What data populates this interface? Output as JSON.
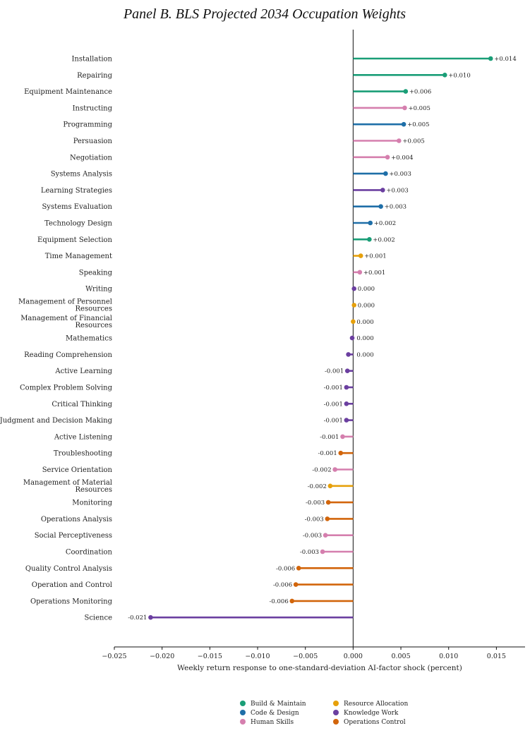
{
  "chart_data": {
    "type": "lollipop",
    "title": "Panel B. BLS Projected 2034 Occupation Weights",
    "xlabel": "Weekly return response to one-standard-deviation AI-factor shock (percent)",
    "xlim": [
      -0.025,
      0.018
    ],
    "xticks": [
      -0.025,
      -0.02,
      -0.015,
      -0.01,
      -0.005,
      0.0,
      0.005,
      0.01,
      0.015
    ],
    "xtick_labels": [
      "−0.025",
      "−0.020",
      "−0.015",
      "−0.010",
      "−0.005",
      "0.000",
      "0.005",
      "0.010",
      "0.015"
    ],
    "legend_position": "bottom-center",
    "groups": [
      {
        "name": "Build & Maintain",
        "color": "#1a9e77"
      },
      {
        "name": "Resource Allocation",
        "color": "#e6a00b"
      },
      {
        "name": "Code & Design",
        "color": "#1f6fa8"
      },
      {
        "name": "Knowledge Work",
        "color": "#6b3fa0"
      },
      {
        "name": "Human Skills",
        "color": "#d57fae"
      },
      {
        "name": "Operations Control",
        "color": "#d2650b"
      }
    ],
    "items": [
      {
        "label": "Installation",
        "value": 0.0144,
        "value_label": "+0.014",
        "group": "Build & Maintain"
      },
      {
        "label": "Repairing",
        "value": 0.0096,
        "value_label": "+0.010",
        "group": "Build & Maintain"
      },
      {
        "label": "Equipment Maintenance",
        "value": 0.0055,
        "value_label": "+0.006",
        "group": "Build & Maintain"
      },
      {
        "label": "Instructing",
        "value": 0.0054,
        "value_label": "+0.005",
        "group": "Human Skills"
      },
      {
        "label": "Programming",
        "value": 0.0053,
        "value_label": "+0.005",
        "group": "Code & Design"
      },
      {
        "label": "Persuasion",
        "value": 0.0048,
        "value_label": "+0.005",
        "group": "Human Skills"
      },
      {
        "label": "Negotiation",
        "value": 0.0036,
        "value_label": "+0.004",
        "group": "Human Skills"
      },
      {
        "label": "Systems Analysis",
        "value": 0.0034,
        "value_label": "+0.003",
        "group": "Code & Design"
      },
      {
        "label": "Learning Strategies",
        "value": 0.0031,
        "value_label": "+0.003",
        "group": "Knowledge Work"
      },
      {
        "label": "Systems Evaluation",
        "value": 0.0029,
        "value_label": "+0.003",
        "group": "Code & Design"
      },
      {
        "label": "Technology Design",
        "value": 0.0018,
        "value_label": "+0.002",
        "group": "Code & Design"
      },
      {
        "label": "Equipment Selection",
        "value": 0.0017,
        "value_label": "+0.002",
        "group": "Build & Maintain"
      },
      {
        "label": "Time Management",
        "value": 0.0008,
        "value_label": "+0.001",
        "group": "Resource Allocation"
      },
      {
        "label": "Speaking",
        "value": 0.0007,
        "value_label": "+0.001",
        "group": "Human Skills"
      },
      {
        "label": "Writing",
        "value": 0.0001,
        "value_label": "0.000",
        "group": "Knowledge Work"
      },
      {
        "label": "Management of Personnel Resources",
        "value": 0.0001,
        "value_label": "0.000",
        "group": "Resource Allocation"
      },
      {
        "label": "Management of Financial Resources",
        "value": 0.0,
        "value_label": "0.000",
        "group": "Resource Allocation"
      },
      {
        "label": "Mathematics",
        "value": -0.0001,
        "value_label": "0.000",
        "group": "Knowledge Work"
      },
      {
        "label": "Reading Comprehension",
        "value": -0.0005,
        "value_label": "0.000",
        "group": "Knowledge Work"
      },
      {
        "label": "Active Learning",
        "value": -0.0006,
        "value_label": "-0.001",
        "group": "Knowledge Work"
      },
      {
        "label": "Complex Problem Solving",
        "value": -0.0007,
        "value_label": "-0.001",
        "group": "Knowledge Work"
      },
      {
        "label": "Critical Thinking",
        "value": -0.0007,
        "value_label": "-0.001",
        "group": "Knowledge Work"
      },
      {
        "label": "Judgment and Decision Making",
        "value": -0.0007,
        "value_label": "-0.001",
        "group": "Knowledge Work"
      },
      {
        "label": "Active Listening",
        "value": -0.0011,
        "value_label": "-0.001",
        "group": "Human Skills"
      },
      {
        "label": "Troubleshooting",
        "value": -0.0013,
        "value_label": "-0.001",
        "group": "Operations Control"
      },
      {
        "label": "Service Orientation",
        "value": -0.0019,
        "value_label": "-0.002",
        "group": "Human Skills"
      },
      {
        "label": "Management of Material Resources",
        "value": -0.0024,
        "value_label": "-0.002",
        "group": "Resource Allocation"
      },
      {
        "label": "Monitoring",
        "value": -0.0026,
        "value_label": "-0.003",
        "group": "Operations Control"
      },
      {
        "label": "Operations Analysis",
        "value": -0.0027,
        "value_label": "-0.003",
        "group": "Operations Control"
      },
      {
        "label": "Social Perceptiveness",
        "value": -0.0029,
        "value_label": "-0.003",
        "group": "Human Skills"
      },
      {
        "label": "Coordination",
        "value": -0.0032,
        "value_label": "-0.003",
        "group": "Human Skills"
      },
      {
        "label": "Quality Control Analysis",
        "value": -0.0057,
        "value_label": "-0.006",
        "group": "Operations Control"
      },
      {
        "label": "Operation and Control",
        "value": -0.006,
        "value_label": "-0.006",
        "group": "Operations Control"
      },
      {
        "label": "Operations Monitoring",
        "value": -0.0064,
        "value_label": "-0.006",
        "group": "Operations Control"
      },
      {
        "label": "Science",
        "value": -0.0212,
        "value_label": "-0.021",
        "group": "Knowledge Work"
      }
    ]
  }
}
